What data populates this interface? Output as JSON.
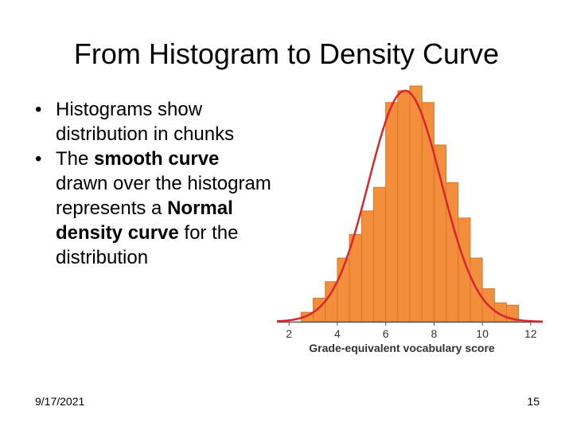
{
  "slide": {
    "title": "From Histogram to Density Curve",
    "bullets": [
      {
        "parts": [
          {
            "text": "Histograms show distribution in chunks",
            "bold": false
          }
        ]
      },
      {
        "parts": [
          {
            "text": "The ",
            "bold": false
          },
          {
            "text": "smooth curve",
            "bold": true
          },
          {
            "text": " drawn over the histogram represents a ",
            "bold": false
          },
          {
            "text": "Normal density curve",
            "bold": true
          },
          {
            "text": " for the distribution",
            "bold": false
          }
        ]
      }
    ],
    "bullet_glyph": "•",
    "date": "9/17/2021",
    "page_number": "15"
  },
  "chart_data": {
    "type": "bar",
    "xlabel": "Grade-equivalent vocabulary score",
    "ylabel": "",
    "title": "",
    "xlim": [
      1.5,
      12.5
    ],
    "ylim": [
      0,
      1
    ],
    "x_ticks": [
      2,
      4,
      6,
      8,
      10,
      12
    ],
    "bin_width": 0.5,
    "bins_start": [
      2.5,
      3,
      3.5,
      4,
      4.5,
      5,
      5.5,
      6,
      6.5,
      7,
      7.5,
      8,
      8.5,
      9,
      9.5,
      10,
      10.5,
      11
    ],
    "values": [
      0.04,
      0.1,
      0.17,
      0.27,
      0.37,
      0.47,
      0.57,
      0.93,
      0.98,
      1.0,
      0.93,
      0.75,
      0.59,
      0.44,
      0.27,
      0.14,
      0.08,
      0.07
    ],
    "curve": {
      "type": "normal",
      "mean": 6.8,
      "sd": 1.5,
      "peak": 0.98
    },
    "colors": {
      "bar_fill": "#F28E3C",
      "bar_edge": "#D9782A",
      "curve": "#D7262E",
      "axis": "#555555"
    },
    "grid": false
  }
}
